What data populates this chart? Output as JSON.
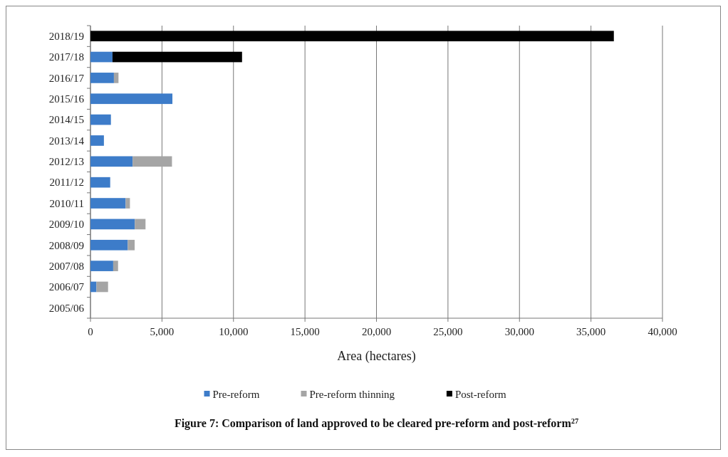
{
  "chart_data": {
    "type": "bar",
    "orientation": "horizontal",
    "stacked": true,
    "title": "Figure 7: Comparison of land approved to be cleared pre-reform and post-reform$^{27}$",
    "xlabel": "Area (hectares)",
    "categories": [
      "2018/19",
      "2017/18",
      "2016/17",
      "2015/16",
      "2014/15",
      "2013/14",
      "2012/13",
      "2011/12",
      "2010/11",
      "2009/10",
      "2008/09",
      "2007/08",
      "2006/07",
      "2005/06"
    ],
    "series": [
      {
        "name": "Pre-reform",
        "color": "#3d7cc9",
        "values": [
          0,
          1540,
          1640,
          5730,
          1430,
          940,
          2950,
          1380,
          2460,
          3100,
          2610,
          1590,
          420,
          null
        ]
      },
      {
        "name": "Pre-reform thinning",
        "color": "#a5a5a5",
        "values": [
          0,
          0,
          320,
          0,
          null,
          0,
          2750,
          0,
          300,
          750,
          480,
          340,
          810,
          0
        ]
      },
      {
        "name": "Post-reform",
        "color": "#000000",
        "values": [
          36600,
          9060,
          0,
          0,
          0,
          0,
          0,
          0,
          0,
          0,
          0,
          0,
          0,
          0
        ]
      }
    ],
    "xlim": [
      0,
      40000
    ],
    "xticks": [
      {
        "value": 0,
        "label": "0"
      },
      {
        "value": 5000,
        "label": "5,000"
      },
      {
        "value": 10000,
        "label": "10,000"
      },
      {
        "value": 15000,
        "label": "15,000"
      },
      {
        "value": 20000,
        "label": "20,000"
      },
      {
        "value": 25000,
        "label": "25,000"
      },
      {
        "value": 30000,
        "label": "30,000"
      },
      {
        "value": 35000,
        "label": "35,000"
      },
      {
        "value": 40000,
        "label": "40,000"
      }
    ],
    "grid": "x",
    "legend": "bottom"
  }
}
